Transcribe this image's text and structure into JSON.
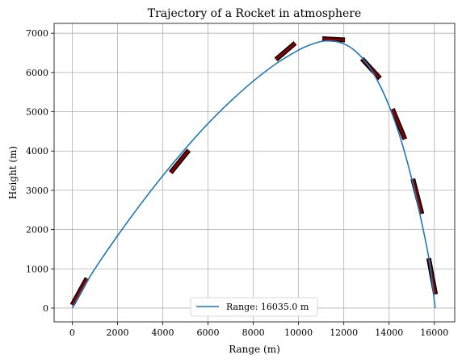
{
  "chart_data": {
    "type": "line",
    "title": "Trajectory of a Rocket in atmosphere",
    "xlabel": "Range (m)",
    "ylabel": "Height (m)",
    "xlim": [
      -800,
      16900
    ],
    "ylim": [
      -350,
      7250
    ],
    "xticks": [
      0,
      2000,
      4000,
      6000,
      8000,
      10000,
      12000,
      14000,
      16000
    ],
    "yticks": [
      0,
      1000,
      2000,
      3000,
      4000,
      5000,
      6000,
      7000
    ],
    "grid": true,
    "legend_position": "lower center",
    "series": [
      {
        "name": "Range: 16035.0 m",
        "color": "#1f77b4",
        "x": [
          0,
          500,
          1000,
          2000,
          3000,
          4000,
          5000,
          6000,
          7000,
          8000,
          9000,
          10000,
          10500,
          11000,
          11500,
          12000,
          12500,
          13000,
          13500,
          14000,
          14500,
          15000,
          15500,
          15800,
          16035
        ],
        "y": [
          0,
          520,
          1000,
          1840,
          2630,
          3370,
          4060,
          4700,
          5270,
          5780,
          6220,
          6570,
          6700,
          6790,
          6800,
          6730,
          6550,
          6240,
          5780,
          5150,
          4330,
          3290,
          2020,
          1120,
          0
        ]
      }
    ],
    "arrows": {
      "color": "#8b0000",
      "segments": [
        {
          "x1": 0,
          "y1": 80,
          "x2": 650,
          "y2": 760
        },
        {
          "x1": 4350,
          "y1": 3450,
          "x2": 5150,
          "y2": 4020
        },
        {
          "x1": 9000,
          "y1": 6330,
          "x2": 9850,
          "y2": 6750
        },
        {
          "x1": 11050,
          "y1": 6860,
          "x2": 12050,
          "y2": 6830
        },
        {
          "x1": 12800,
          "y1": 6350,
          "x2": 13600,
          "y2": 5850
        },
        {
          "x1": 14150,
          "y1": 5070,
          "x2": 14700,
          "y2": 4300
        },
        {
          "x1": 15050,
          "y1": 3290,
          "x2": 15450,
          "y2": 2400
        },
        {
          "x1": 15750,
          "y1": 1270,
          "x2": 16050,
          "y2": 350
        }
      ]
    }
  }
}
